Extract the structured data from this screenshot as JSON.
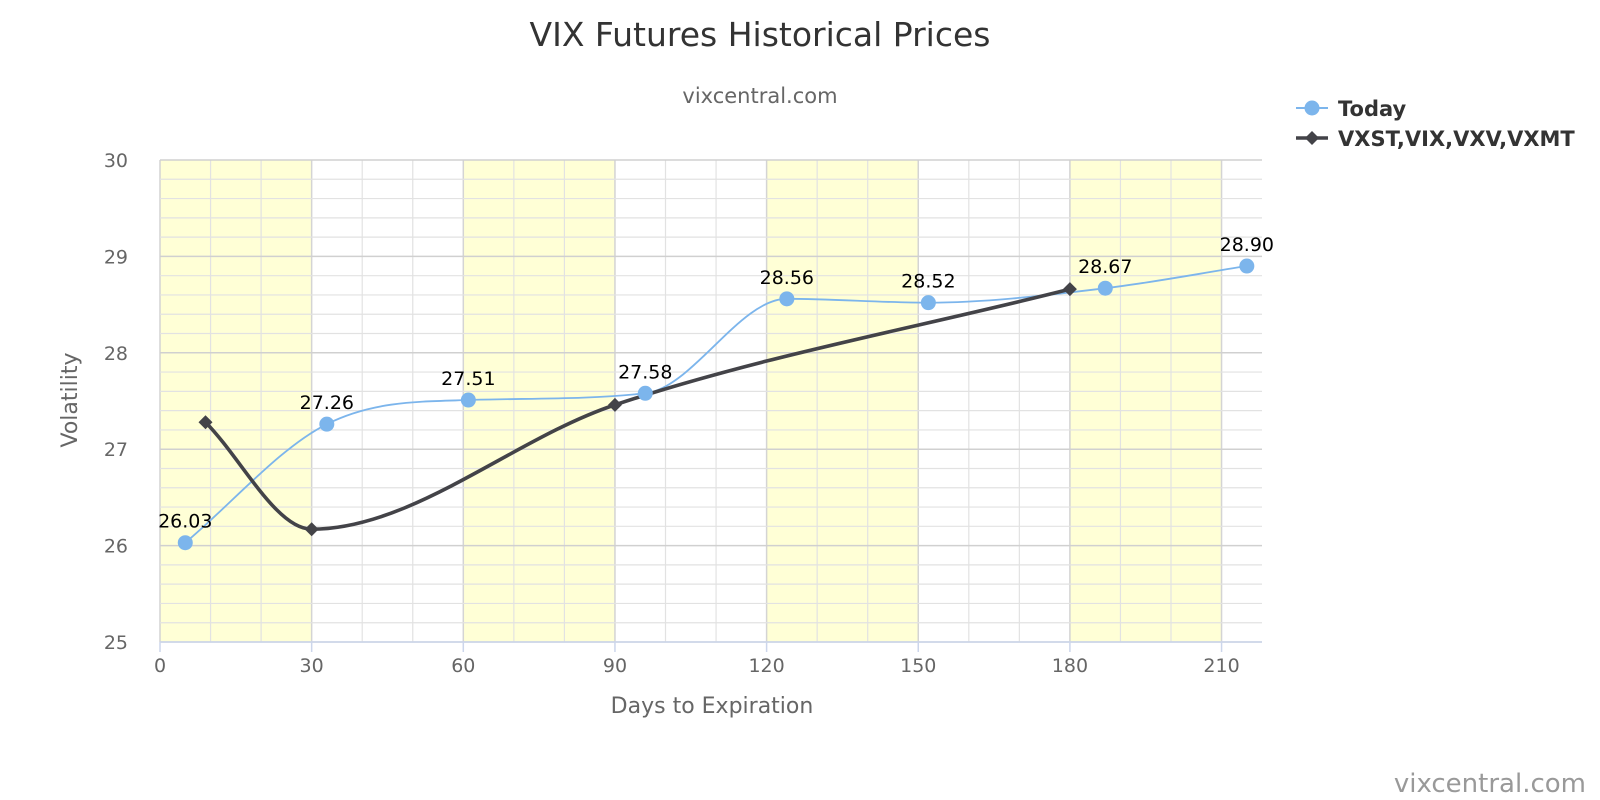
{
  "chart_data": {
    "type": "line",
    "title": "VIX Futures Historical Prices",
    "subtitle": "vixcentral.com",
    "xlabel": "Days to Expiration",
    "ylabel": "Volatility",
    "xlim": [
      0,
      218
    ],
    "ylim": [
      25,
      30
    ],
    "x_ticks": [
      0,
      30,
      60,
      90,
      120,
      150,
      180,
      210
    ],
    "y_ticks": [
      25,
      26,
      27,
      28,
      29,
      30
    ],
    "grid": true,
    "shaded_bands": [
      [
        0,
        30
      ],
      [
        60,
        90
      ],
      [
        120,
        150
      ],
      [
        180,
        210
      ]
    ],
    "legend_position": "top-right",
    "series": [
      {
        "name": "Today",
        "color": "#7cb5ec",
        "marker": "circle",
        "x": [
          5,
          33,
          61,
          96,
          124,
          152,
          187,
          215
        ],
        "y": [
          26.03,
          27.26,
          27.51,
          27.58,
          28.56,
          28.52,
          28.67,
          28.9
        ],
        "labels": [
          "26.03",
          "27.26",
          "27.51",
          "27.58",
          "28.56",
          "28.52",
          "28.67",
          "28.90"
        ]
      },
      {
        "name": "VXST,VIX,VXV,VXMT",
        "color": "#434348",
        "marker": "diamond",
        "x": [
          9,
          30,
          90,
          180
        ],
        "y": [
          27.28,
          26.17,
          27.46,
          28.66
        ]
      }
    ]
  },
  "credits": "vixcentral.com"
}
